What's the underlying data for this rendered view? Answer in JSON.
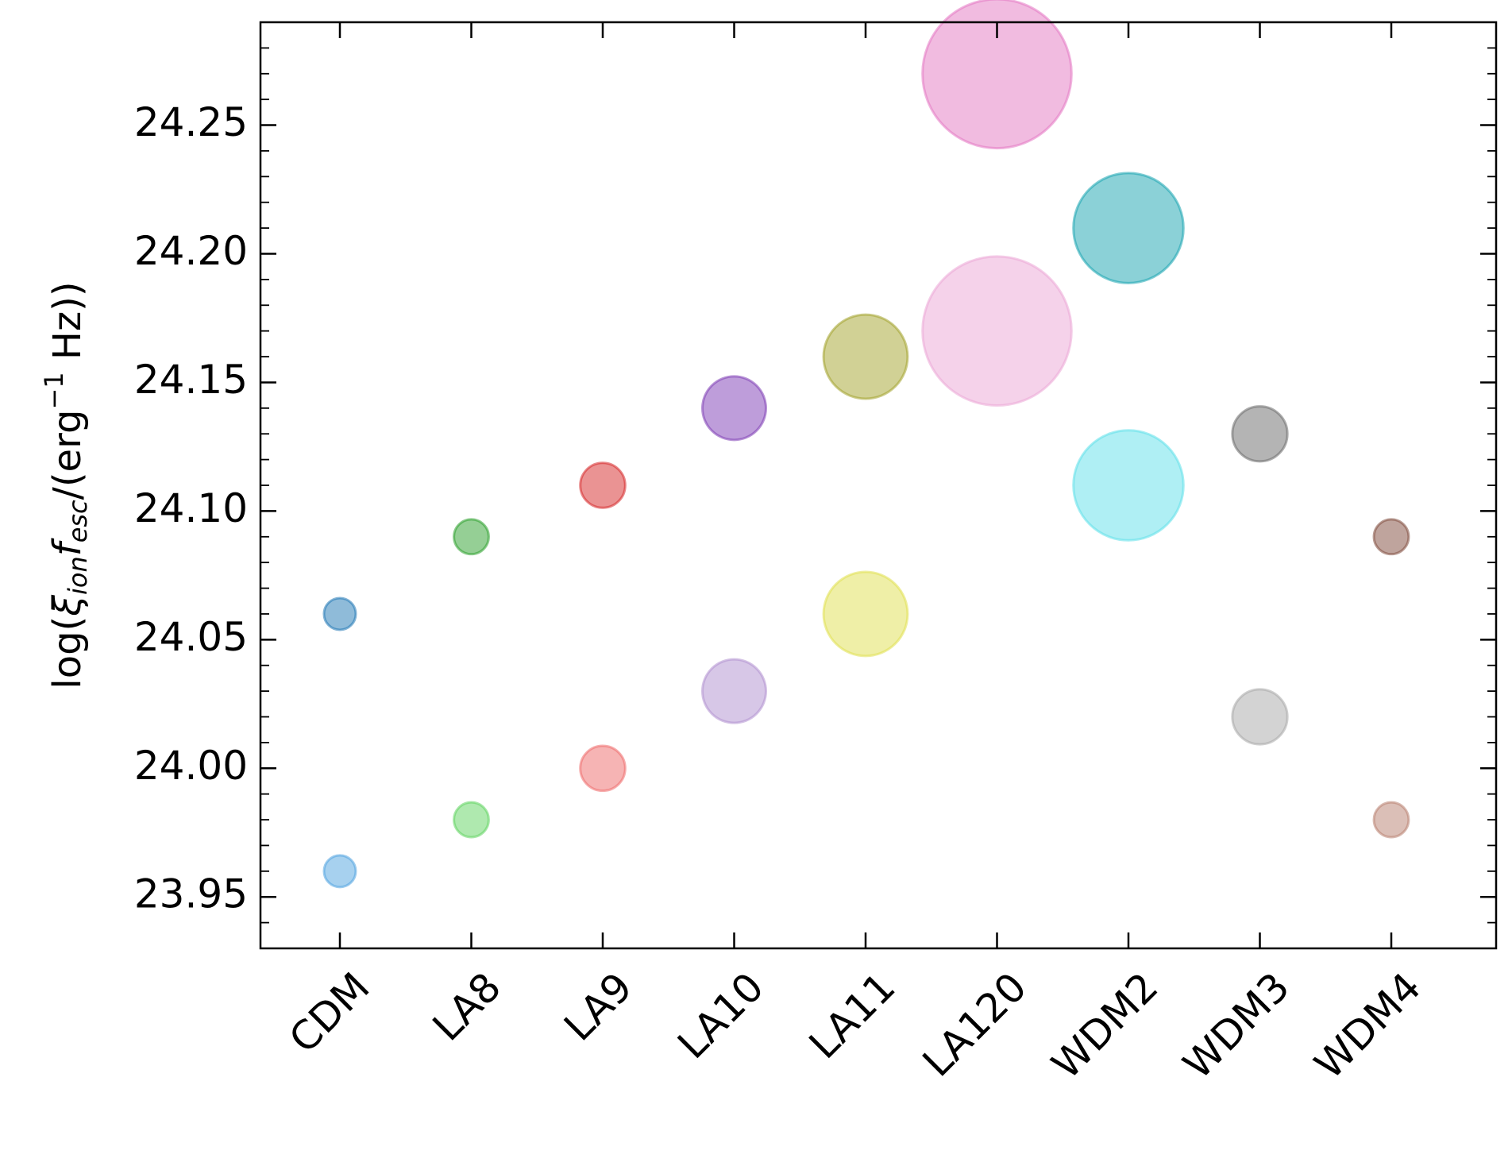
{
  "chart_data": {
    "type": "scatter",
    "ylabel": {
      "prefix": "log(",
      "xi": "ξ",
      "xi_sub": "ion",
      "f": "f",
      "f_sub": "esc",
      "units_open": "/(erg",
      "units_exp": "−1",
      "units_close": " Hz))"
    },
    "categories": [
      "CDM",
      "LA8",
      "LA9",
      "LA10",
      "LA11",
      "LA120",
      "WDM2",
      "WDM3",
      "WDM4"
    ],
    "ylim": [
      23.93,
      24.29
    ],
    "yticks": [
      "23.95",
      "24.00",
      "24.05",
      "24.10",
      "24.15",
      "24.20",
      "24.25"
    ],
    "grid": false,
    "points": [
      {
        "category": "CDM",
        "y": 24.06,
        "size": 1,
        "color": "#1f77b4"
      },
      {
        "category": "CDM",
        "y": 23.96,
        "size": 1,
        "color": "#4fa3e0"
      },
      {
        "category": "LA8",
        "y": 24.09,
        "size": 1.2,
        "color": "#2ca02c"
      },
      {
        "category": "LA8",
        "y": 23.98,
        "size": 1.2,
        "color": "#5fd35f"
      },
      {
        "category": "LA9",
        "y": 24.11,
        "size": 2,
        "color": "#d62728"
      },
      {
        "category": "LA9",
        "y": 24.0,
        "size": 2,
        "color": "#ee6a6a"
      },
      {
        "category": "LA10",
        "y": 24.14,
        "size": 4,
        "color": "#7d3cb5"
      },
      {
        "category": "LA10",
        "y": 24.03,
        "size": 4,
        "color": "#b08fd0"
      },
      {
        "category": "LA11",
        "y": 24.16,
        "size": 7,
        "color": "#a3a32b"
      },
      {
        "category": "LA11",
        "y": 24.06,
        "size": 7,
        "color": "#e0e04f"
      },
      {
        "category": "LA120",
        "y": 24.27,
        "size": 22,
        "color": "#e377c2"
      },
      {
        "category": "LA120",
        "y": 24.17,
        "size": 22,
        "color": "#eba5d6"
      },
      {
        "category": "WDM2",
        "y": 24.21,
        "size": 12,
        "color": "#17a4b0"
      },
      {
        "category": "WDM2",
        "y": 24.11,
        "size": 12,
        "color": "#5fe0ea"
      },
      {
        "category": "WDM3",
        "y": 24.13,
        "size": 3,
        "color": "#6a6a6a"
      },
      {
        "category": "WDM3",
        "y": 24.02,
        "size": 3,
        "color": "#a8a8a8"
      },
      {
        "category": "WDM4",
        "y": 24.09,
        "size": 1.2,
        "color": "#7f4a3c"
      },
      {
        "category": "WDM4",
        "y": 23.98,
        "size": 1.2,
        "color": "#b8806f"
      }
    ]
  }
}
